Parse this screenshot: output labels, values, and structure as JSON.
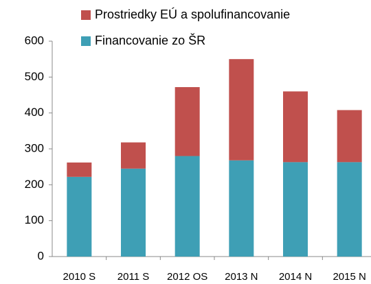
{
  "chart_data": {
    "type": "stacked_bar",
    "categories": [
      "2010 S",
      "2011 S",
      "2012 OS",
      "2013 N",
      "2014 N",
      "2015 N"
    ],
    "series": [
      {
        "name": "Financovanie zo ŠR",
        "color": "#3e9fb5",
        "values": [
          222,
          245,
          280,
          268,
          263,
          263
        ]
      },
      {
        "name": "Prostriedky  EÚ a spolufinancovanie",
        "color": "#c0504d",
        "values": [
          40,
          73,
          192,
          282,
          197,
          145
        ]
      }
    ],
    "ylim": [
      0,
      600
    ],
    "yticks": [
      0,
      100,
      200,
      300,
      400,
      500,
      600
    ],
    "grid": false
  }
}
